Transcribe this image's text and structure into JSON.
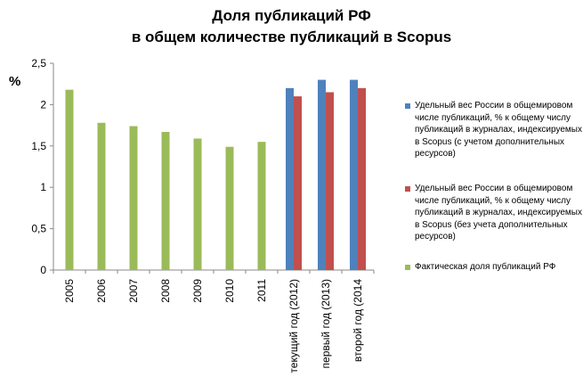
{
  "chart_data": {
    "type": "bar",
    "title_lines": [
      "Доля публикаций РФ",
      "в общем количестве публикаций в Scopus"
    ],
    "ylabel": "%",
    "ylim": [
      0,
      2.5
    ],
    "yticks": [
      "0",
      "0,5",
      "1",
      "1,5",
      "2",
      "2,5"
    ],
    "categories": [
      "2005",
      "2006",
      "2007",
      "2008",
      "2009",
      "2010",
      "2011",
      "текущий год (2012)",
      "первый год (2013)",
      "второй год (2014"
    ],
    "series": [
      {
        "name": "Удельный вес России в общемировом числе публикаций, % к общему числу публикаций в журналах, индексируемых в Scopus (с учетом дополнительных ресурсов)",
        "color": "#4f81bd",
        "values": [
          null,
          null,
          null,
          null,
          null,
          null,
          null,
          2.2,
          2.3,
          2.3
        ]
      },
      {
        "name": "Удельный вес России в общемировом числе публикаций, % к общему числу публикаций в журналах, индексируемых в Scopus (без учета дополнительных ресурсов)",
        "color": "#c0504d",
        "values": [
          null,
          null,
          null,
          null,
          null,
          null,
          null,
          2.1,
          2.15,
          2.2
        ]
      },
      {
        "name": "Фактическая доля публикаций РФ",
        "color": "#9bbb59",
        "values": [
          2.18,
          1.78,
          1.74,
          1.67,
          1.59,
          1.49,
          1.55,
          null,
          null,
          null
        ]
      }
    ],
    "legend_position": "right",
    "grid": false
  }
}
